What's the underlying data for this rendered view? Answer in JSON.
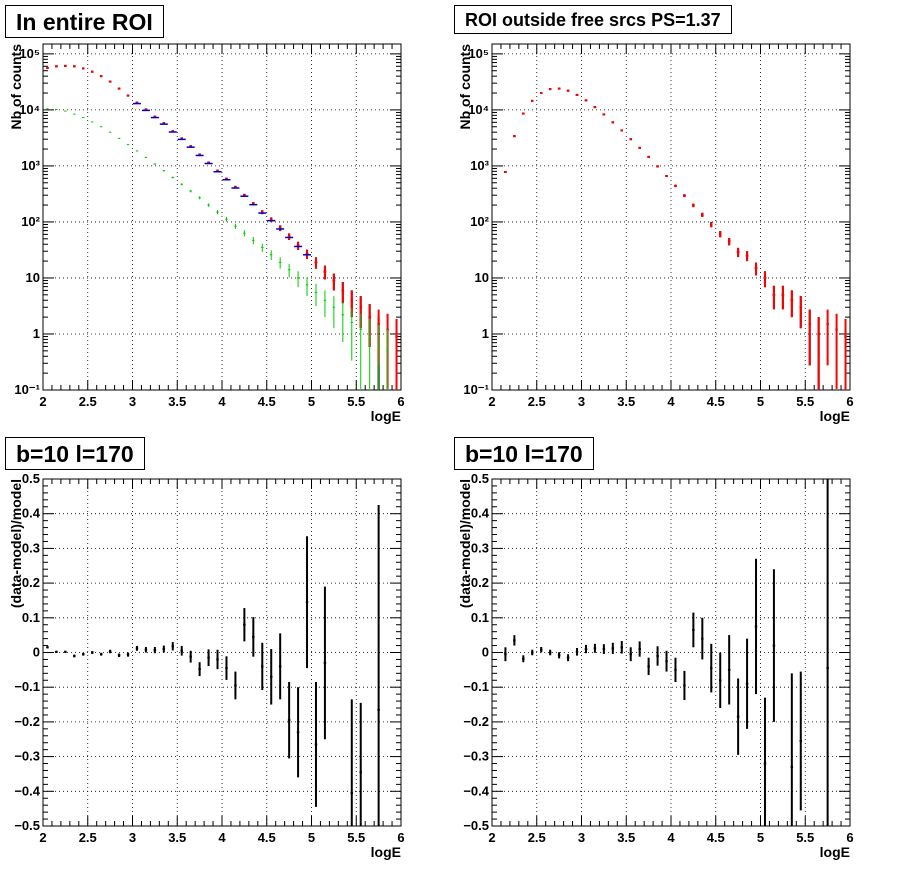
{
  "titles": {
    "tl": "In entire ROI",
    "tr": "ROI outside free srcs PS=1.37",
    "bl": "b=10 l=170",
    "br": "b=10 l=170"
  },
  "colors": {
    "data": "#000000",
    "model_total": "#ff0000",
    "model_src": "#00cc00",
    "model_blue": "#0000cc"
  },
  "chart_data": [
    {
      "id": "tl",
      "type": "scatter",
      "title": "In entire ROI",
      "xlabel": "logE",
      "ylabel": "Nb of counts",
      "yscale": "log",
      "xlim": [
        2,
        6
      ],
      "ylim": [
        0.1,
        150000
      ],
      "grid": true,
      "xticks": [
        "2",
        "2.5",
        "3",
        "3.5",
        "4",
        "4.5",
        "5",
        "5.5",
        "6"
      ],
      "yticks": [
        "10⁻¹",
        "1",
        "10",
        "10²",
        "10³",
        "10⁴",
        "10⁵"
      ],
      "x": [
        2.05,
        2.15,
        2.25,
        2.35,
        2.45,
        2.55,
        2.65,
        2.75,
        2.85,
        2.95,
        3.05,
        3.15,
        3.25,
        3.35,
        3.45,
        3.55,
        3.65,
        3.75,
        3.85,
        3.95,
        4.05,
        4.15,
        4.25,
        4.35,
        4.45,
        4.55,
        4.65,
        4.75,
        4.85,
        4.95,
        5.05,
        5.15,
        5.25,
        5.35,
        5.45,
        5.55,
        5.65,
        5.75,
        5.85,
        5.95
      ],
      "series": [
        {
          "name": "",
          "color": "#000000",
          "values": [
            56000,
            60000,
            61000,
            60000,
            55000,
            48000,
            40000,
            32000,
            24000,
            18000,
            13500,
            10200,
            7600,
            5800,
            4200,
            3100,
            2250,
            1600,
            1150,
            820,
            590,
            420,
            300,
            212,
            150,
            110,
            78,
            55,
            38,
            27,
            19,
            13,
            9,
            6,
            4,
            3,
            2,
            1,
            null,
            null
          ]
        },
        {
          "name": "",
          "color": "#ff0000",
          "values": [
            56000,
            60000,
            61000,
            60000,
            55000,
            48000,
            40000,
            32000,
            24000,
            18000,
            13500,
            10200,
            7600,
            5800,
            4200,
            3100,
            2250,
            1600,
            1150,
            820,
            590,
            420,
            300,
            212,
            150,
            110,
            78,
            55,
            38,
            27,
            19,
            13,
            9,
            6,
            4,
            3,
            2,
            1.5,
            1.2,
            0.9
          ]
        },
        {
          "name": "",
          "color": "#00cc00",
          "values": [
            10500,
            10200,
            9500,
            8400,
            7300,
            6100,
            5000,
            4000,
            3100,
            2400,
            1850,
            1420,
            1080,
            820,
            620,
            470,
            355,
            270,
            200,
            150,
            112,
            84,
            63,
            47,
            35,
            26,
            19,
            14,
            10,
            7.5,
            5.5,
            4,
            3,
            2.2,
            1.6,
            1.2,
            0.9,
            0.65,
            0.5,
            null
          ]
        }
      ]
    },
    {
      "id": "tr",
      "type": "scatter",
      "title": "ROI outside free srcs PS=1.37",
      "xlabel": "logE",
      "ylabel": "Nb of counts",
      "yscale": "log",
      "xlim": [
        2,
        6
      ],
      "ylim": [
        0.1,
        150000
      ],
      "grid": true,
      "xticks": [
        "2",
        "2.5",
        "3",
        "3.5",
        "4",
        "4.5",
        "5",
        "5.5",
        "6"
      ],
      "yticks": [
        "10⁻¹",
        "1",
        "10",
        "10²",
        "10³",
        "10⁴",
        "10⁵"
      ],
      "x": [
        2.15,
        2.25,
        2.35,
        2.45,
        2.55,
        2.65,
        2.75,
        2.85,
        2.95,
        3.05,
        3.15,
        3.25,
        3.35,
        3.45,
        3.55,
        3.65,
        3.75,
        3.85,
        3.95,
        4.05,
        4.15,
        4.25,
        4.35,
        4.45,
        4.55,
        4.65,
        4.75,
        4.85,
        4.95,
        5.05,
        5.15,
        5.25,
        5.35,
        5.45,
        5.55,
        5.65,
        5.75,
        5.85,
        5.95
      ],
      "series": [
        {
          "name": "",
          "color": "#000000",
          "values": [
            780,
            3400,
            8600,
            14500,
            20000,
            23500,
            24000,
            22000,
            18500,
            14800,
            11200,
            8300,
            6000,
            4300,
            3000,
            2100,
            1450,
            980,
            660,
            440,
            295,
            198,
            134,
            90,
            61,
            45,
            29,
            25,
            15,
            10,
            5,
            5,
            4,
            3,
            1.5,
            1,
            null,
            null,
            null
          ]
        },
        {
          "name": "",
          "color": "#ff0000",
          "values": [
            780,
            3400,
            8600,
            14500,
            20000,
            23500,
            24000,
            22000,
            18500,
            14800,
            11200,
            8300,
            6000,
            4300,
            3000,
            2100,
            1450,
            980,
            660,
            440,
            295,
            198,
            134,
            90,
            61,
            45,
            29,
            25,
            15,
            10,
            5,
            5,
            4,
            3,
            1.5,
            1,
            1.5,
            1.2,
            0.9
          ]
        }
      ]
    },
    {
      "id": "bl",
      "type": "scatter",
      "title": "b=10 l=170",
      "xlabel": "logE",
      "ylabel": "(data-model)/model",
      "yscale": "linear",
      "xlim": [
        2,
        6
      ],
      "ylim": [
        -0.5,
        0.5
      ],
      "grid": true,
      "xticks": [
        "2",
        "2.5",
        "3",
        "3.5",
        "4",
        "4.5",
        "5",
        "5.5",
        "6"
      ],
      "yticks": [
        "−0.5",
        "−0.4",
        "−0.3",
        "−0.2",
        "−0.1",
        "0",
        "0.1",
        "0.2",
        "0.3",
        "0.4",
        "0.5"
      ],
      "x": [
        2.05,
        2.15,
        2.25,
        2.35,
        2.45,
        2.55,
        2.65,
        2.75,
        2.85,
        2.95,
        3.05,
        3.15,
        3.25,
        3.35,
        3.45,
        3.55,
        3.65,
        3.75,
        3.85,
        3.95,
        4.05,
        4.15,
        4.25,
        4.35,
        4.45,
        4.55,
        4.65,
        4.75,
        4.85,
        4.95,
        5.05,
        5.15,
        5.25,
        5.35,
        5.45,
        5.55,
        5.65,
        5.75
      ],
      "values": [
        0.015,
        0.002,
        0.002,
        -0.01,
        -0.005,
        0.0,
        -0.005,
        0.003,
        -0.008,
        -0.006,
        0.012,
        0.008,
        0.007,
        0.01,
        0.018,
        0.005,
        -0.012,
        -0.048,
        -0.015,
        -0.02,
        -0.045,
        -0.095,
        0.08,
        0.045,
        -0.04,
        -0.07,
        -0.04,
        -0.195,
        -0.23,
        0.145,
        -0.265,
        -0.03,
        null,
        null,
        -0.405,
        -0.345,
        null,
        -0.165
      ],
      "errors": [
        0.003,
        0.003,
        0.003,
        0.004,
        0.004,
        0.004,
        0.004,
        0.005,
        0.005,
        0.006,
        0.007,
        0.008,
        0.009,
        0.01,
        0.012,
        0.014,
        0.017,
        0.02,
        0.024,
        0.028,
        0.034,
        0.04,
        0.048,
        0.057,
        0.068,
        0.08,
        0.095,
        0.11,
        0.13,
        0.19,
        0.18,
        0.22,
        null,
        null,
        0.27,
        0.2,
        null,
        0.59
      ]
    },
    {
      "id": "br",
      "type": "scatter",
      "title": "b=10 l=170",
      "xlabel": "logE",
      "ylabel": "(data-model)/model",
      "yscale": "linear",
      "xlim": [
        2,
        6
      ],
      "ylim": [
        -0.5,
        0.5
      ],
      "grid": true,
      "xticks": [
        "2",
        "2.5",
        "3",
        "3.5",
        "4",
        "4.5",
        "5",
        "5.5",
        "6"
      ],
      "yticks": [
        "−0.5",
        "−0.4",
        "−0.3",
        "−0.2",
        "−0.1",
        "0",
        "0.1",
        "0.2",
        "0.3",
        "0.4",
        "0.5"
      ],
      "x": [
        2.15,
        2.25,
        2.35,
        2.45,
        2.55,
        2.65,
        2.75,
        2.85,
        2.95,
        3.05,
        3.15,
        3.25,
        3.35,
        3.45,
        3.55,
        3.65,
        3.75,
        3.85,
        3.95,
        4.05,
        4.15,
        4.25,
        4.35,
        4.45,
        4.55,
        4.65,
        4.75,
        4.85,
        4.95,
        5.05,
        5.15,
        5.25,
        5.35,
        5.45,
        5.55,
        5.65,
        5.75
      ],
      "values": [
        -0.005,
        0.035,
        -0.018,
        0.0,
        0.008,
        0.0,
        -0.008,
        -0.015,
        0.002,
        0.01,
        0.012,
        0.01,
        0.012,
        0.015,
        -0.005,
        0.01,
        -0.04,
        -0.01,
        -0.025,
        -0.05,
        -0.095,
        0.065,
        0.04,
        -0.045,
        -0.08,
        -0.05,
        -0.185,
        -0.09,
        0.075,
        -0.32,
        0.02,
        null,
        -0.33,
        -0.255,
        null,
        null,
        -0.045
      ],
      "errors": [
        0.02,
        0.015,
        0.01,
        0.008,
        0.008,
        0.008,
        0.009,
        0.01,
        0.011,
        0.012,
        0.013,
        0.014,
        0.016,
        0.018,
        0.02,
        0.022,
        0.025,
        0.028,
        0.03,
        0.035,
        0.042,
        0.05,
        0.06,
        0.07,
        0.08,
        0.1,
        0.11,
        0.13,
        0.195,
        0.19,
        0.22,
        null,
        0.27,
        0.2,
        null,
        null,
        0.55
      ]
    }
  ]
}
